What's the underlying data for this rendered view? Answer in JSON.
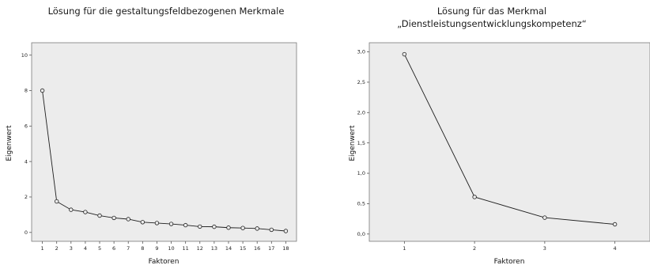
{
  "chart_data": [
    {
      "type": "line",
      "title": "Lösung für die gestaltungsfeldbezogenen Merkmale",
      "xlabel": "Faktoren",
      "ylabel": "Eigenwert",
      "x": [
        1,
        2,
        3,
        4,
        5,
        6,
        7,
        8,
        9,
        10,
        11,
        12,
        13,
        14,
        15,
        16,
        17,
        18
      ],
      "x_tick_labels": [
        "1",
        "2",
        "3",
        "4",
        "5",
        "6",
        "7",
        "8",
        "9",
        "10",
        "11",
        "12",
        "13",
        "14",
        "15",
        "16",
        "17",
        "18"
      ],
      "y": [
        8.0,
        1.75,
        1.28,
        1.15,
        0.95,
        0.82,
        0.75,
        0.58,
        0.53,
        0.48,
        0.41,
        0.33,
        0.32,
        0.27,
        0.25,
        0.22,
        0.15,
        0.08
      ],
      "y_tick_labels": [
        "0",
        "2",
        "4",
        "6",
        "8",
        "10"
      ],
      "ylim": [
        -0.5,
        10.7
      ],
      "xlim": [
        0.25,
        18.75
      ],
      "grid": false,
      "background": "#ececec"
    },
    {
      "type": "line",
      "title": [
        "Lösung für das Merkmal",
        "„Dienstleistungsentwicklungskompetenz“"
      ],
      "xlabel": "Faktoren",
      "ylabel": "Eigenwert",
      "x": [
        1,
        2,
        3,
        4
      ],
      "x_tick_labels": [
        "1",
        "2",
        "3",
        "4"
      ],
      "y": [
        2.96,
        0.61,
        0.27,
        0.16
      ],
      "y_tick_labels": [
        "0,0",
        "0,5",
        "1,0",
        "1,5",
        "2,0",
        "2,5",
        "3,0"
      ],
      "ylim": [
        -0.12,
        3.15
      ],
      "xlim": [
        0.5,
        4.5
      ],
      "grid": false,
      "background": "#ececec"
    }
  ]
}
